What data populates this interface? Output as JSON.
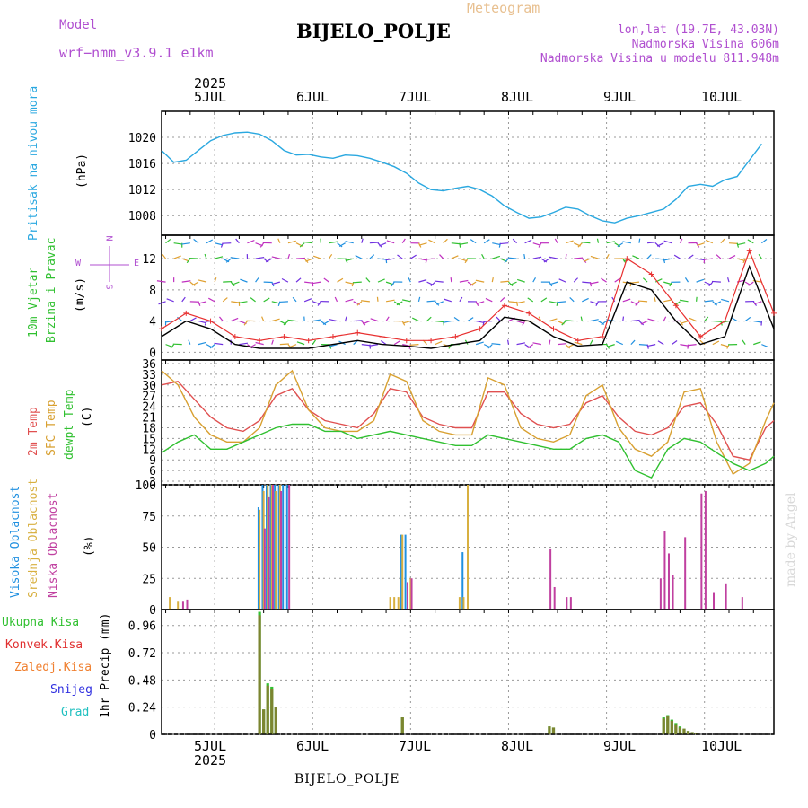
{
  "header": {
    "model_label": "Model",
    "model_name": "wrf−nmm_v3.9.1  e1km",
    "meteogram_label": "Meteogram",
    "station_title": "BIJELO_POLJE",
    "lonlat": "lon,lat (19.7E, 43.03N)",
    "altitude": "Nadmorska Visina 606m",
    "model_altitude": "Nadmorska Visina u modelu 811.948m",
    "footer_station": "BIJELO_POLJE",
    "credit": "made by Angel"
  },
  "time_axis": {
    "year": "2025",
    "days": [
      "5JUL",
      "6JUL",
      "7JUL",
      "8JUL",
      "9JUL",
      "10JUL"
    ]
  },
  "colors": {
    "pressure": "#2aa8e0",
    "wind_speed": "#000000",
    "gust": "#e83030",
    "t2m": "#e05050",
    "sfc": "#d8a030",
    "dewpt": "#30c030",
    "high_cloud": "#2090e0",
    "mid_cloud": "#d8b040",
    "low_cloud": "#c040a0",
    "total_precip": "#30c030",
    "conv_precip": "#e03030",
    "frozen_precip": "#f08030",
    "snow": "#3030e0",
    "hail": "#20c0c0"
  },
  "chart_data": [
    {
      "type": "line",
      "panel": "pressure",
      "ylabel_lines": [
        "Pritisak na nivou mora"
      ],
      "unit": "(hPa)",
      "ylim": [
        1005,
        1024
      ],
      "yticks": [
        1008,
        1012,
        1016,
        1020
      ],
      "x_hours": [
        0,
        3,
        6,
        9,
        12,
        15,
        18,
        21,
        24,
        27,
        30,
        33,
        36,
        39,
        42,
        45,
        48,
        51,
        54,
        57,
        60,
        63,
        66,
        69,
        72,
        75,
        78,
        81,
        84,
        87,
        90,
        93,
        96,
        99,
        102,
        105,
        108,
        111,
        114,
        117,
        120,
        123,
        126,
        129,
        132,
        135,
        138,
        141,
        144,
        147
      ],
      "series": [
        {
          "values": [
            1018,
            1016.2,
            1016.5,
            1018,
            1019.5,
            1020.3,
            1020.7,
            1020.8,
            1020.5,
            1019.5,
            1018,
            1017.3,
            1017.4,
            1017,
            1016.8,
            1017.3,
            1017.2,
            1016.8,
            1016.2,
            1015.5,
            1014.5,
            1013,
            1012,
            1011.8,
            1012.2,
            1012.5,
            1012,
            1011,
            1009.5,
            1008.5,
            1007.6,
            1007.8,
            1008.5,
            1009.3,
            1009,
            1008,
            1007.2,
            1006.9,
            1007.6,
            1008,
            1008.5,
            1009,
            1010.5,
            1012.5,
            1012.8,
            1012.5,
            1013.5,
            1014,
            1016.5,
            1019
          ]
        }
      ]
    },
    {
      "type": "line",
      "panel": "wind",
      "ylabel_lines": [
        "10m Vjetar",
        "Brzina i Pravac"
      ],
      "unit": "(m/s)",
      "compass": {
        "n": "N",
        "s": "S",
        "w": "W",
        "e": "E"
      },
      "ylim": [
        -1,
        15
      ],
      "yticks": [
        0,
        4,
        8,
        12
      ],
      "x_hours": [
        0,
        6,
        12,
        18,
        24,
        30,
        36,
        42,
        48,
        54,
        60,
        66,
        72,
        78,
        84,
        90,
        96,
        102,
        108,
        114,
        120,
        126,
        132,
        138,
        144,
        150
      ],
      "series": [
        {
          "name": "speed",
          "values": [
            2,
            4,
            3,
            1,
            0.5,
            0.5,
            0.5,
            1,
            1.5,
            1,
            0.8,
            0.5,
            1,
            1.5,
            4.5,
            4,
            2,
            0.8,
            1,
            9,
            8,
            4,
            1,
            2,
            11,
            3
          ]
        },
        {
          "name": "gust",
          "values": [
            3,
            5,
            4,
            2,
            1.5,
            2,
            1.5,
            2,
            2.5,
            2,
            1.5,
            1.5,
            2,
            3,
            6,
            5,
            3,
            1.5,
            2,
            12,
            10,
            6,
            2,
            4,
            13,
            5
          ]
        }
      ]
    },
    {
      "type": "line",
      "panel": "temperature",
      "ylabel_lines": [
        "2m Temp",
        "SFC Temp",
        "dewpt Temp"
      ],
      "unit": "(C)",
      "ylim": [
        2,
        37
      ],
      "yticks": [
        3,
        6,
        9,
        12,
        15,
        18,
        21,
        24,
        27,
        30,
        33,
        36
      ],
      "x_hours": [
        0,
        4,
        8,
        12,
        16,
        20,
        24,
        28,
        32,
        36,
        40,
        44,
        48,
        52,
        56,
        60,
        64,
        68,
        72,
        76,
        80,
        84,
        88,
        92,
        96,
        100,
        104,
        108,
        112,
        116,
        120,
        124,
        128,
        132,
        136,
        140,
        144,
        148,
        150
      ],
      "series": [
        {
          "name": "t2m",
          "values": [
            30,
            31,
            26,
            21,
            18,
            17,
            20,
            27,
            29,
            23,
            20,
            19,
            18,
            22,
            29,
            28,
            21,
            19,
            18,
            18,
            28,
            28,
            22,
            19,
            18,
            19,
            25,
            27,
            21,
            17,
            16,
            18,
            24,
            25,
            19,
            10,
            9,
            18,
            20
          ]
        },
        {
          "name": "sfc",
          "values": [
            34,
            30,
            21,
            16,
            14,
            14,
            18,
            30,
            34,
            23,
            18,
            17,
            17,
            20,
            33,
            31,
            20,
            17,
            16,
            16,
            32,
            30,
            18,
            15,
            14,
            16,
            27,
            30,
            18,
            12,
            10,
            14,
            28,
            29,
            14,
            5,
            8,
            20,
            25
          ]
        },
        {
          "name": "dewpt",
          "values": [
            11,
            14,
            16,
            12,
            12,
            14,
            16,
            18,
            19,
            19,
            17,
            17,
            15,
            16,
            17,
            16,
            15,
            14,
            13,
            13,
            16,
            15,
            14,
            13,
            12,
            12,
            15,
            16,
            14,
            6,
            4,
            12,
            15,
            14,
            11,
            8,
            6,
            8,
            10
          ]
        }
      ]
    },
    {
      "type": "bar",
      "panel": "cloud",
      "ylabel_lines": [
        "Visoka Oblacnost",
        "Srednja Oblacnost",
        "Niska Oblacnost"
      ],
      "unit": "(%)",
      "ylim": [
        0,
        100
      ],
      "yticks": [
        0,
        25,
        50,
        75,
        100
      ],
      "series": [
        {
          "name": "high",
          "x_hours": [
            24,
            25,
            26,
            27,
            28,
            29,
            30,
            31,
            59,
            60,
            74
          ],
          "values": [
            82,
            100,
            100,
            100,
            100,
            100,
            100,
            100,
            60,
            60,
            46
          ]
        },
        {
          "name": "mid",
          "x_hours": [
            2,
            4,
            24,
            25,
            26,
            27,
            28,
            29,
            56,
            57,
            58,
            59,
            61,
            73,
            74,
            75
          ],
          "values": [
            10,
            7,
            80,
            95,
            100,
            100,
            95,
            100,
            10,
            10,
            10,
            60,
            25,
            10,
            10,
            100
          ]
        },
        {
          "name": "low",
          "x_hours": [
            5,
            6,
            25,
            26,
            27,
            29,
            31,
            60,
            61,
            95,
            96,
            99,
            100,
            122,
            123,
            124,
            125,
            128,
            132,
            133,
            135,
            138,
            142
          ],
          "values": [
            7,
            8,
            65,
            90,
            100,
            95,
            100,
            22,
            25,
            49,
            18,
            10,
            10,
            25,
            63,
            45,
            28,
            58,
            93,
            95,
            14,
            21,
            10
          ]
        }
      ]
    },
    {
      "type": "bar",
      "panel": "precip",
      "ylabel_lines": [
        "1hr Precip"
      ],
      "unit": "(mm)",
      "legend": [
        "Ukupna Kisa",
        "Konvek.Kisa",
        "Zaledj.Kisa",
        "Snijeg",
        "Grad"
      ],
      "ylim": [
        0,
        1.1
      ],
      "yticks": [
        0,
        0.24,
        0.48,
        0.72,
        0.96
      ],
      "series": [
        {
          "name": "total",
          "x_hours": [
            24,
            25,
            26,
            27,
            28,
            59,
            95,
            96,
            123,
            124,
            125,
            126,
            127,
            128,
            129,
            130,
            131
          ],
          "values": [
            1.08,
            0.22,
            0.45,
            0.42,
            0.24,
            0.15,
            0.07,
            0.06,
            0.15,
            0.17,
            0.13,
            0.1,
            0.07,
            0.05,
            0.03,
            0.02,
            0.01
          ]
        },
        {
          "name": "convective",
          "x_hours": [
            24,
            25,
            26,
            27,
            28,
            59,
            95,
            96,
            123,
            124,
            125,
            126,
            127,
            128,
            129,
            130,
            131
          ],
          "values": [
            1.05,
            0.22,
            0.43,
            0.4,
            0.24,
            0.15,
            0.07,
            0.06,
            0.14,
            0.16,
            0.12,
            0.09,
            0.06,
            0.05,
            0.03,
            0.02,
            0.01
          ]
        }
      ]
    }
  ]
}
